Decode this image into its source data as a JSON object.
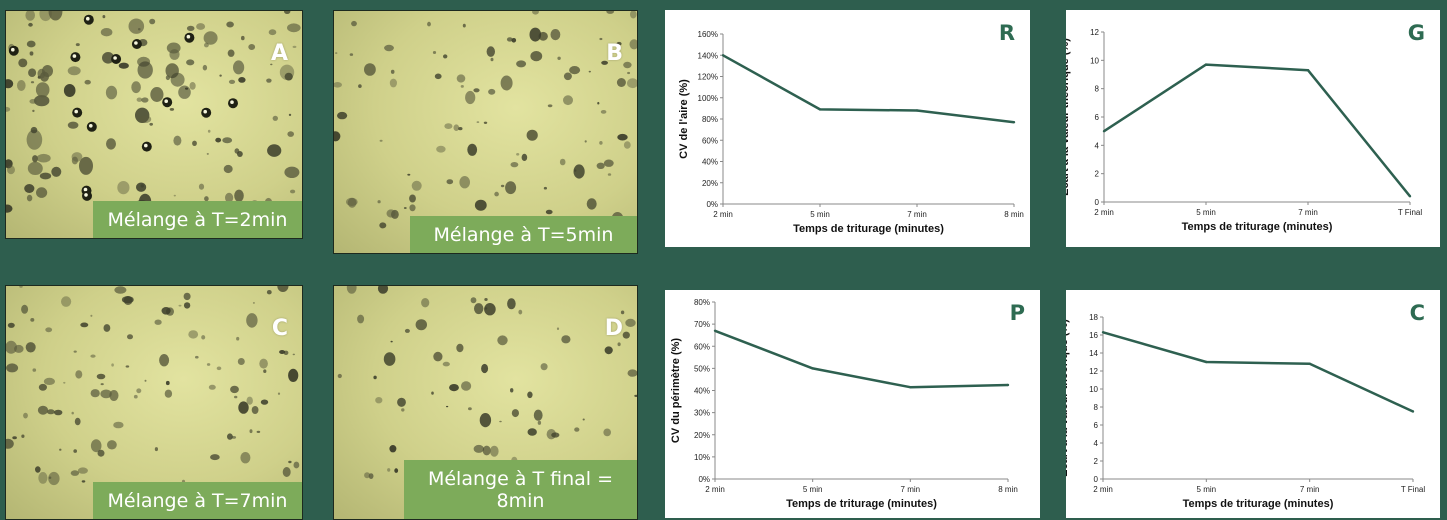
{
  "colors": {
    "background": "#2e5e4e",
    "caption_bg": "#7dab5a",
    "line": "#2e6050",
    "panel_letter": "#2e6b52"
  },
  "photos": [
    {
      "letter": "A",
      "caption": "Mélange à T=2min"
    },
    {
      "letter": "B",
      "caption": "Mélange à T=5min"
    },
    {
      "letter": "C",
      "caption": "Mélange à T=7min"
    },
    {
      "letter": "D",
      "caption": "Mélange à T final = 8min"
    }
  ],
  "chart_data": [
    {
      "type": "line",
      "letter": "R",
      "x": [
        "2 min",
        "5 min",
        "7 min",
        "8 min"
      ],
      "series": [
        {
          "values": [
            140,
            89,
            88,
            77
          ]
        }
      ],
      "ylabel": "CV de l'aire (%)",
      "xlabel": "Temps de triturage (minutes)",
      "ylim": [
        0,
        160
      ],
      "yticks": [
        0,
        20,
        40,
        60,
        80,
        100,
        120,
        140,
        160
      ],
      "ytick_suffix": "%",
      "grid": false,
      "legend": "none"
    },
    {
      "type": "line",
      "letter": "G",
      "x": [
        "2 min",
        "5 min",
        "7 min",
        "T Final"
      ],
      "series": [
        {
          "values": [
            5.0,
            9.7,
            9.3,
            0.4
          ]
        }
      ],
      "ylabel": "Ecart à la valeur théorique (%)",
      "xlabel": "Temps de triturage (minutes)",
      "ylim": [
        0,
        12
      ],
      "yticks": [
        0,
        2,
        4,
        6,
        8,
        10,
        12
      ],
      "ytick_suffix": "",
      "grid": false,
      "legend": "none"
    },
    {
      "type": "line",
      "letter": "P",
      "x": [
        "2 min",
        "5 min",
        "7 min",
        "8 min"
      ],
      "series": [
        {
          "values": [
            67,
            50,
            41.5,
            42.5
          ]
        }
      ],
      "ylabel": "CV du périmètre (%)",
      "xlabel": "Temps de triturage (minutes)",
      "ylim": [
        0,
        80
      ],
      "yticks": [
        0,
        10,
        20,
        30,
        40,
        50,
        60,
        70,
        80
      ],
      "ytick_suffix": "%",
      "grid": false,
      "legend": "none"
    },
    {
      "type": "line",
      "letter": "C",
      "x": [
        "2 min",
        "5 min",
        "7 min",
        "T Final"
      ],
      "series": [
        {
          "values": [
            16.3,
            13.0,
            12.8,
            7.5
          ]
        }
      ],
      "ylabel": "Ecart à la valeur théorique (%)",
      "xlabel": "Temps de triturage (minutes)",
      "ylim": [
        0,
        18
      ],
      "yticks": [
        0,
        2,
        4,
        6,
        8,
        10,
        12,
        14,
        16,
        18
      ],
      "ytick_suffix": "",
      "grid": false,
      "legend": "none"
    }
  ]
}
